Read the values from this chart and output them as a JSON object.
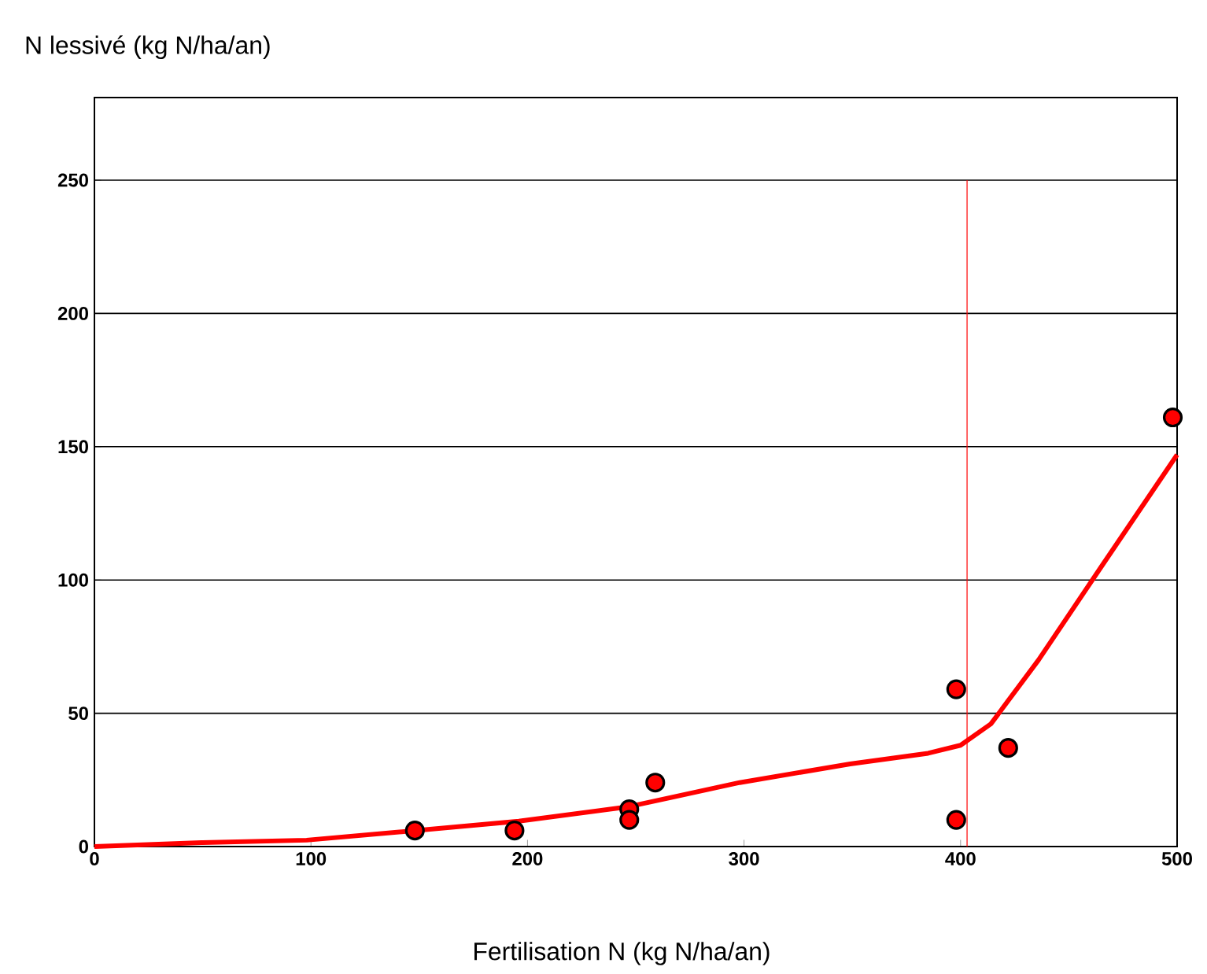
{
  "chart_data": {
    "type": "scatter",
    "xlabel": "Fertilisation N (kg N/ha/an)",
    "ylabel": "N lessivé (kg N/ha/an)",
    "xlim": [
      0,
      500
    ],
    "ylim": [
      0,
      281
    ],
    "xticks": [
      0,
      100,
      200,
      300,
      400,
      500
    ],
    "yticks": [
      0,
      50,
      100,
      150,
      200,
      250
    ],
    "grid": "y",
    "marker": "circle",
    "series": [
      {
        "color": "#ff0000",
        "x": [
          148,
          194,
          247,
          247,
          259,
          398,
          398,
          422,
          498
        ],
        "values": [
          6,
          6,
          14,
          10,
          24,
          59,
          10,
          37,
          161
        ]
      },
      {
        "type": "line",
        "color": "#ff0000",
        "marker": "none",
        "x": [
          0,
          50,
          98,
          148,
          196,
          247,
          298,
          349,
          385,
          400,
          414,
          436,
          465,
          500
        ],
        "values": [
          0,
          1.5,
          2.4,
          6,
          9.5,
          15,
          24,
          31,
          35,
          38,
          46,
          70,
          105,
          147
        ]
      }
    ],
    "ref_lines": [
      {
        "axis": "x",
        "value": 403,
        "color": "#ff0000"
      }
    ]
  }
}
